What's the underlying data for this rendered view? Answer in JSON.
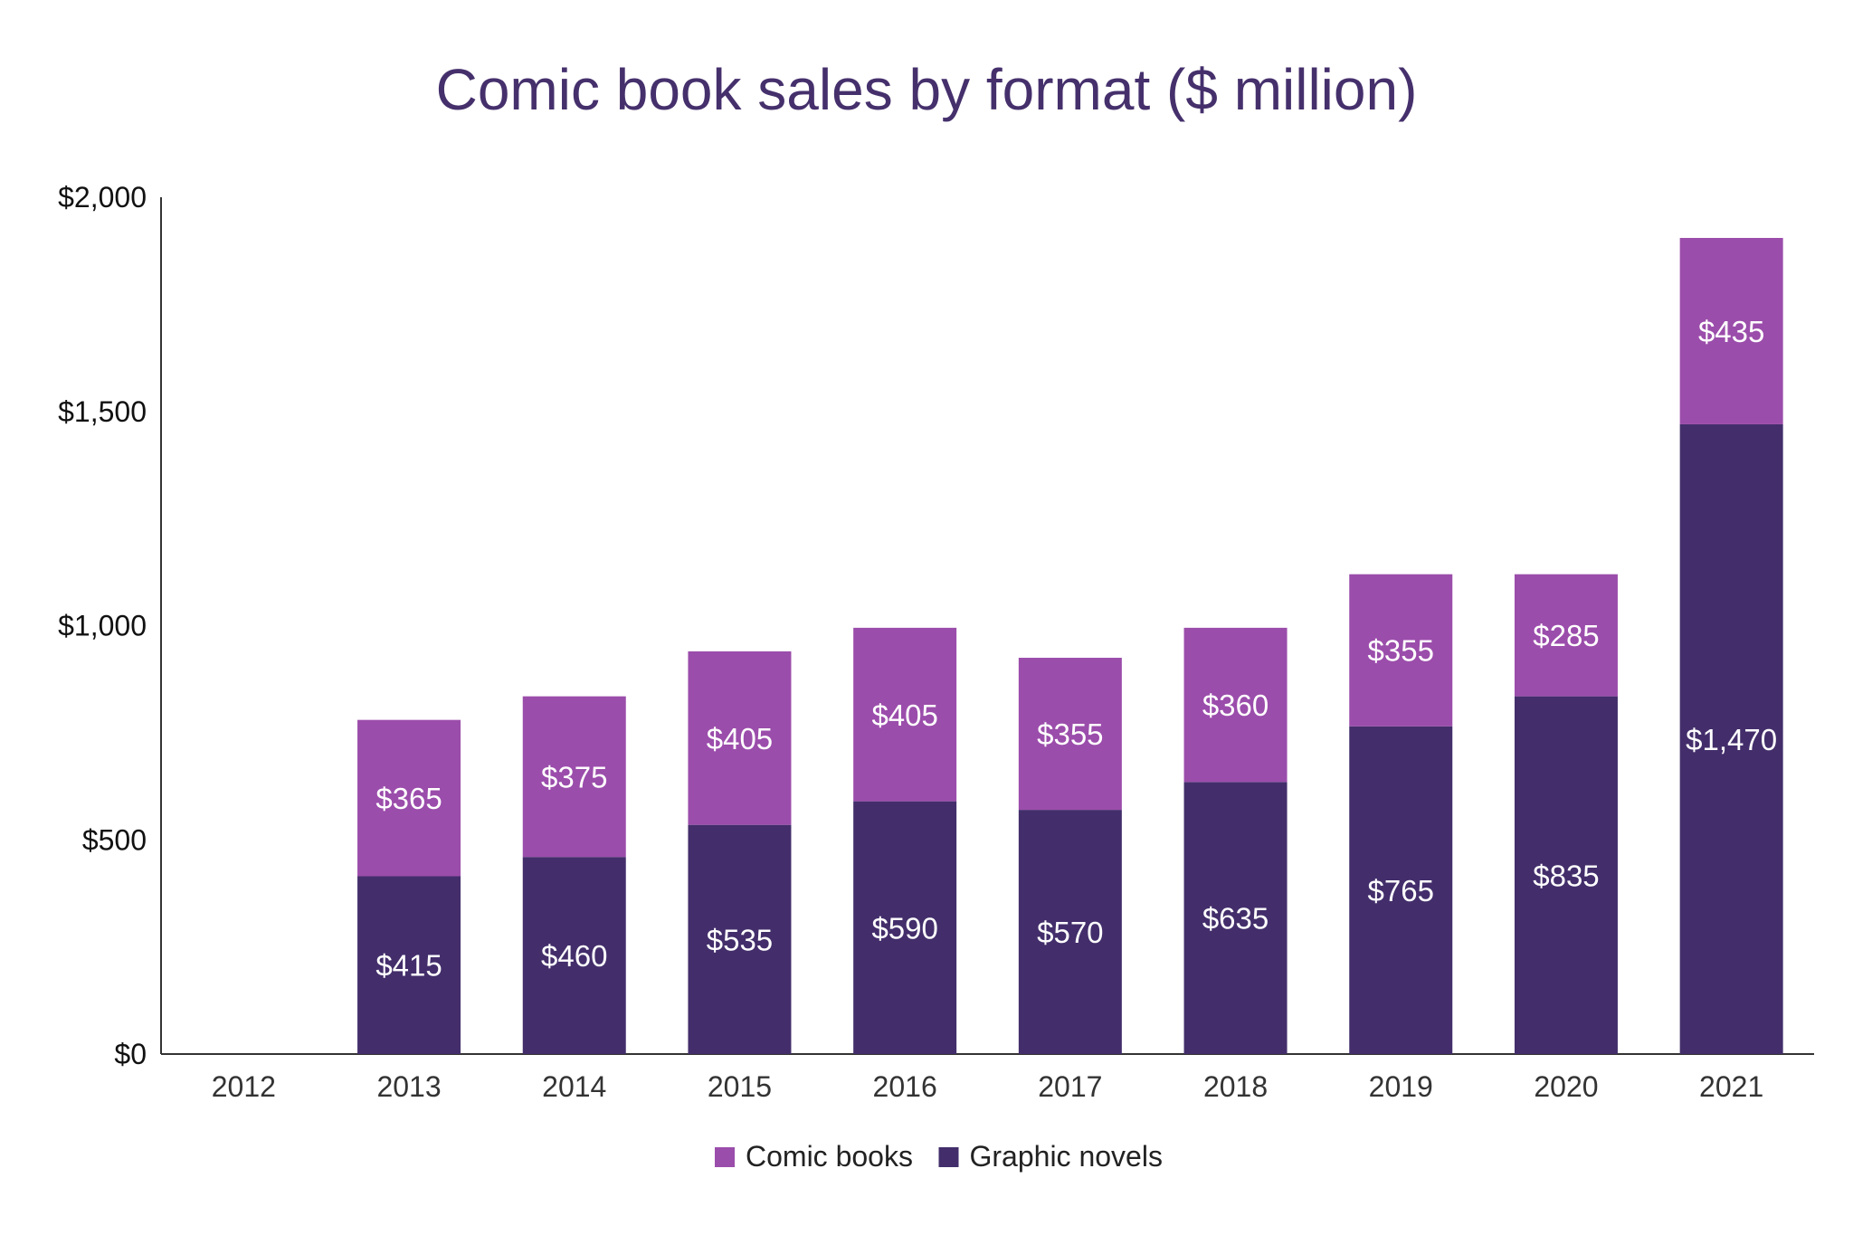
{
  "chart_data": {
    "type": "bar",
    "stacked": true,
    "title": "Comic book sales by format ($ million)",
    "xlabel": "",
    "ylabel": "",
    "categories": [
      "2012",
      "2013",
      "2014",
      "2015",
      "2016",
      "2017",
      "2018",
      "2019",
      "2020",
      "2021"
    ],
    "series": [
      {
        "name": "Graphic novels",
        "color": "#432e6b",
        "values": [
          null,
          415,
          460,
          535,
          590,
          570,
          635,
          765,
          835,
          1470
        ],
        "labels": [
          "",
          "$415",
          "$460",
          "$535",
          "$590",
          "$570",
          "$635",
          "$765",
          "$835",
          "$1,470"
        ]
      },
      {
        "name": "Comic books",
        "color": "#9b4dab",
        "values": [
          null,
          365,
          375,
          405,
          405,
          355,
          360,
          355,
          285,
          435
        ],
        "labels": [
          "",
          "$365",
          "$375",
          "$405",
          "$405",
          "$355",
          "$360",
          "$355",
          "$285",
          "$435"
        ]
      }
    ],
    "ylim": [
      0,
      2000
    ],
    "yticks": [
      0,
      500,
      1000,
      1500,
      2000
    ],
    "ytick_labels": [
      "$0",
      "$500",
      "$1,000",
      "$1,500",
      "$2,000"
    ],
    "legend": {
      "position": "bottom",
      "items": [
        {
          "name": "Comic books",
          "color": "#9b4dab"
        },
        {
          "name": "Graphic novels",
          "color": "#432e6b"
        }
      ]
    },
    "grid": false
  }
}
